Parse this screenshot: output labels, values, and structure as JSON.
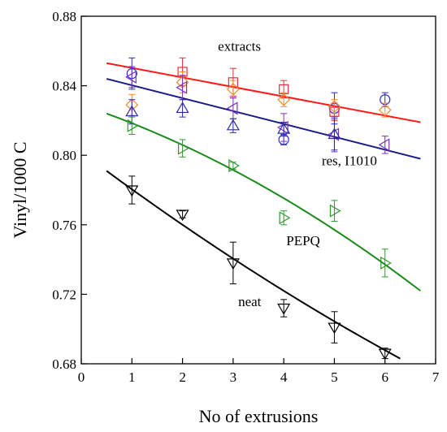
{
  "chart_data": {
    "type": "scatter",
    "title": "",
    "xlabel": "No of extrusions",
    "ylabel": "Vinyl/1000 C",
    "xlim": [
      0,
      7
    ],
    "ylim": [
      0.68,
      0.88
    ],
    "xticks": [
      "0",
      "1",
      "2",
      "3",
      "4",
      "5",
      "6",
      "7"
    ],
    "yticks": [
      "0.68",
      "0.72",
      "0.76",
      "0.80",
      "0.84",
      "0.88"
    ],
    "grid": false,
    "legend": "none",
    "series": [
      {
        "marker": "circle",
        "color": "#2b2bd6",
        "points": [
          [
            1,
            0.847
          ],
          [
            4,
            0.809
          ],
          [
            5,
            0.827
          ],
          [
            6,
            0.832
          ]
        ],
        "errors": [
          0.009,
          0.003,
          0.009,
          0.004
        ]
      },
      {
        "marker": "square",
        "color": "#e8303a",
        "points": [
          [
            2,
            0.848
          ],
          [
            3,
            0.842
          ],
          [
            4,
            0.838
          ],
          [
            5,
            0.825
          ]
        ],
        "errors": [
          0.008,
          0.008,
          0.005,
          0.005
        ]
      },
      {
        "marker": "diamond",
        "color": "#f08a2c",
        "points": [
          [
            1,
            0.829
          ],
          [
            2,
            0.842
          ],
          [
            3,
            0.838
          ],
          [
            4,
            0.832
          ],
          [
            5,
            0.828
          ],
          [
            6,
            0.826
          ]
        ],
        "errors": [
          0.006,
          0.006,
          0.005,
          0.004,
          0.004,
          0.004
        ]
      },
      {
        "marker": "triangle-left",
        "color": "#7b2fc0",
        "points": [
          [
            1,
            0.845
          ],
          [
            2,
            0.839
          ],
          [
            3,
            0.827
          ],
          [
            4,
            0.816
          ],
          [
            5,
            0.812
          ],
          [
            6,
            0.806
          ]
        ],
        "errors": [
          0.006,
          0.007,
          0.006,
          0.008,
          0.01,
          0.005
        ]
      },
      {
        "marker": "triangle-up",
        "color": "#2a2aa8",
        "points": [
          [
            1,
            0.825
          ],
          [
            2,
            0.827
          ],
          [
            3,
            0.817
          ],
          [
            4,
            0.815
          ],
          [
            5,
            0.812
          ]
        ],
        "errors": [
          0.007,
          0.005,
          0.004,
          0.004,
          0.009
        ]
      },
      {
        "marker": "triangle-right",
        "color": "#2e9a2e",
        "points": [
          [
            1,
            0.817
          ],
          [
            2,
            0.804
          ],
          [
            3,
            0.794
          ],
          [
            4,
            0.764
          ],
          [
            5,
            0.768
          ],
          [
            6,
            0.738
          ]
        ],
        "errors": [
          0.005,
          0.005,
          0.002,
          0.004,
          0.006,
          0.008
        ]
      },
      {
        "marker": "triangle-down",
        "color": "#000000",
        "points": [
          [
            1,
            0.78
          ],
          [
            2,
            0.766
          ],
          [
            3,
            0.738
          ],
          [
            4,
            0.712
          ],
          [
            5,
            0.701
          ],
          [
            6,
            0.686
          ]
        ],
        "errors": [
          0.008,
          0.002,
          0.012,
          0.005,
          0.009,
          0.003
        ]
      }
    ],
    "fits": [
      {
        "label": "extracts",
        "color": "#ff1a1a",
        "type": "linear",
        "x_range": [
          0.5,
          6.7
        ],
        "y_range": [
          0.853,
          0.819
        ]
      },
      {
        "label": "res, I1010",
        "color": "#1a1a8c",
        "type": "linear",
        "x_range": [
          0.5,
          6.7
        ],
        "y_range": [
          0.844,
          0.798
        ]
      },
      {
        "label": "PEPQ",
        "color": "#1a8a1a",
        "type": "quadratic",
        "x": [
          0.5,
          3.6,
          6.7
        ],
        "y": [
          0.824,
          0.782,
          0.722
        ]
      },
      {
        "label": "neat",
        "color": "#000000",
        "type": "quadratic",
        "x": [
          0.5,
          3.4,
          6.3
        ],
        "y": [
          0.791,
          0.733,
          0.683
        ]
      }
    ],
    "annotations": [
      {
        "text": "extracts",
        "x": 2.7,
        "y": 0.863
      },
      {
        "text": "res, I1010",
        "x": 4.75,
        "y": 0.797
      },
      {
        "text": "PEPQ",
        "x": 4.05,
        "y": 0.751
      },
      {
        "text": "neat",
        "x": 3.1,
        "y": 0.716
      }
    ]
  }
}
